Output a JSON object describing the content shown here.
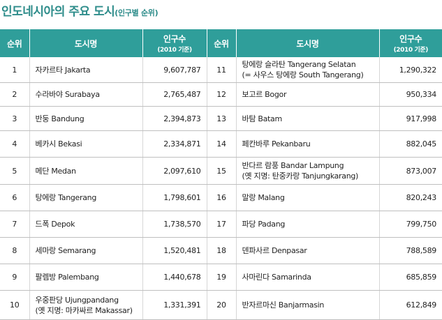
{
  "title": {
    "main": "인도네시아의 주요 도시",
    "sub": "(인구별 순위)"
  },
  "table": {
    "headers": {
      "rank": "순위",
      "city": "도시명",
      "population": "인구수",
      "population_note": "(2010 기준)"
    },
    "rows": [
      {
        "rank": "1",
        "city": "자카르타 Jakarta",
        "population": "9,607,787",
        "rank2": "11",
        "city2_line1": "탕에랑 슬라탄 Tangerang Selatan",
        "city2_line2": "(= 사우스 탕에랑 South Tangerang)",
        "population2": "1,290,322"
      },
      {
        "rank": "2",
        "city": "수라바야 Surabaya",
        "population": "2,765,487",
        "rank2": "12",
        "city2_line1": "보고르 Bogor",
        "city2_line2": "",
        "population2": "950,334"
      },
      {
        "rank": "3",
        "city": "반둥 Bandung",
        "population": "2,394,873",
        "rank2": "13",
        "city2_line1": "바탐 Batam",
        "city2_line2": "",
        "population2": "917,998"
      },
      {
        "rank": "4",
        "city": "베카시 Bekasi",
        "population": "2,334,871",
        "rank2": "14",
        "city2_line1": "페칸바루 Pekanbaru",
        "city2_line2": "",
        "population2": "882,045"
      },
      {
        "rank": "5",
        "city": "메단 Medan",
        "population": "2,097,610",
        "rank2": "15",
        "city2_line1": "반다르 람풍 Bandar Lampung",
        "city2_line2": "(옛 지명: 탄중카랑 Tanjungkarang)",
        "population2": "873,007"
      },
      {
        "rank": "6",
        "city": "탕에랑 Tangerang",
        "population": "1,798,601",
        "rank2": "16",
        "city2_line1": "말랑 Malang",
        "city2_line2": "",
        "population2": "820,243"
      },
      {
        "rank": "7",
        "city": "드폭 Depok",
        "population": "1,738,570",
        "rank2": "17",
        "city2_line1": "파당 Padang",
        "city2_line2": "",
        "population2": "799,750"
      },
      {
        "rank": "8",
        "city": "세마랑 Semarang",
        "population": "1,520,481",
        "rank2": "18",
        "city2_line1": "덴파사르 Denpasar",
        "city2_line2": "",
        "population2": "788,589"
      },
      {
        "rank": "9",
        "city": "팔렘방 Palembang",
        "population": "1,440,678",
        "rank2": "19",
        "city2_line1": "사마린다 Samarinda",
        "city2_line2": "",
        "population2": "685,859"
      },
      {
        "rank": "10",
        "city": "우중판당 Ujungpandang",
        "city_line2": "(옛 지명: 마카싸르 Makassar)",
        "population": "1,331,391",
        "rank2": "20",
        "city2_line1": "반자르마신 Banjarmasin",
        "city2_line2": "",
        "population2": "612,849"
      }
    ]
  },
  "colors": {
    "title": "#2d8c8a",
    "header_bg": "#2f9e9a",
    "header_text": "#ffffff",
    "row_border": "#bfbfbf"
  }
}
